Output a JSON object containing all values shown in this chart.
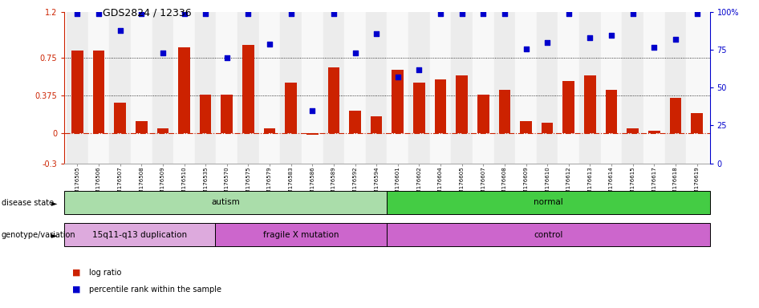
{
  "title": "GDS2824 / 12336",
  "samples": [
    "GSM176505",
    "GSM176506",
    "GSM176507",
    "GSM176508",
    "GSM176509",
    "GSM176510",
    "GSM176535",
    "GSM176570",
    "GSM176575",
    "GSM176579",
    "GSM176583",
    "GSM176586",
    "GSM176589",
    "GSM176592",
    "GSM176594",
    "GSM176601",
    "GSM176602",
    "GSM176604",
    "GSM176605",
    "GSM176607",
    "GSM176608",
    "GSM176609",
    "GSM176610",
    "GSM176612",
    "GSM176613",
    "GSM176614",
    "GSM176615",
    "GSM176617",
    "GSM176618",
    "GSM176619"
  ],
  "log_ratio": [
    0.82,
    0.82,
    0.3,
    0.12,
    0.05,
    0.85,
    0.38,
    0.38,
    0.88,
    0.05,
    0.5,
    -0.02,
    0.65,
    0.22,
    0.17,
    0.63,
    0.5,
    0.53,
    0.57,
    0.38,
    0.43,
    0.12,
    0.1,
    0.52,
    0.57,
    0.43,
    0.05,
    0.02,
    0.35,
    0.2
  ],
  "percentile": [
    99,
    99,
    88,
    99,
    73,
    99,
    99,
    70,
    99,
    79,
    99,
    35,
    99,
    73,
    86,
    57,
    62,
    99,
    99,
    99,
    99,
    76,
    80,
    99,
    83,
    85,
    99,
    77,
    82,
    99
  ],
  "bar_color": "#cc2200",
  "dot_color": "#0000cc",
  "ylim_left": [
    -0.3,
    1.2
  ],
  "ylim_right": [
    0,
    100
  ],
  "yticks_left": [
    -0.3,
    0,
    0.375,
    0.75,
    1.2
  ],
  "yticks_right": [
    0,
    25,
    50,
    75,
    100
  ],
  "ytick_labels_left": [
    "-0.3",
    "0",
    "0.375",
    "0.75",
    "1.2"
  ],
  "ytick_labels_right": [
    "0",
    "25",
    "50",
    "75",
    "100%"
  ],
  "disease_state_groups": [
    {
      "label": "autism",
      "start": 0,
      "end": 15,
      "color": "#aaddaa"
    },
    {
      "label": "normal",
      "start": 15,
      "end": 30,
      "color": "#44cc44"
    }
  ],
  "genotype_groups": [
    {
      "label": "15q11-q13 duplication",
      "start": 0,
      "end": 7,
      "color": "#ddaadd"
    },
    {
      "label": "fragile X mutation",
      "start": 7,
      "end": 15,
      "color": "#cc77cc"
    },
    {
      "label": "control",
      "start": 15,
      "end": 30,
      "color": "#cc77cc"
    }
  ],
  "legend_log_ratio": "log ratio",
  "legend_percentile": "percentile rank within the sample",
  "bar_width": 0.55
}
